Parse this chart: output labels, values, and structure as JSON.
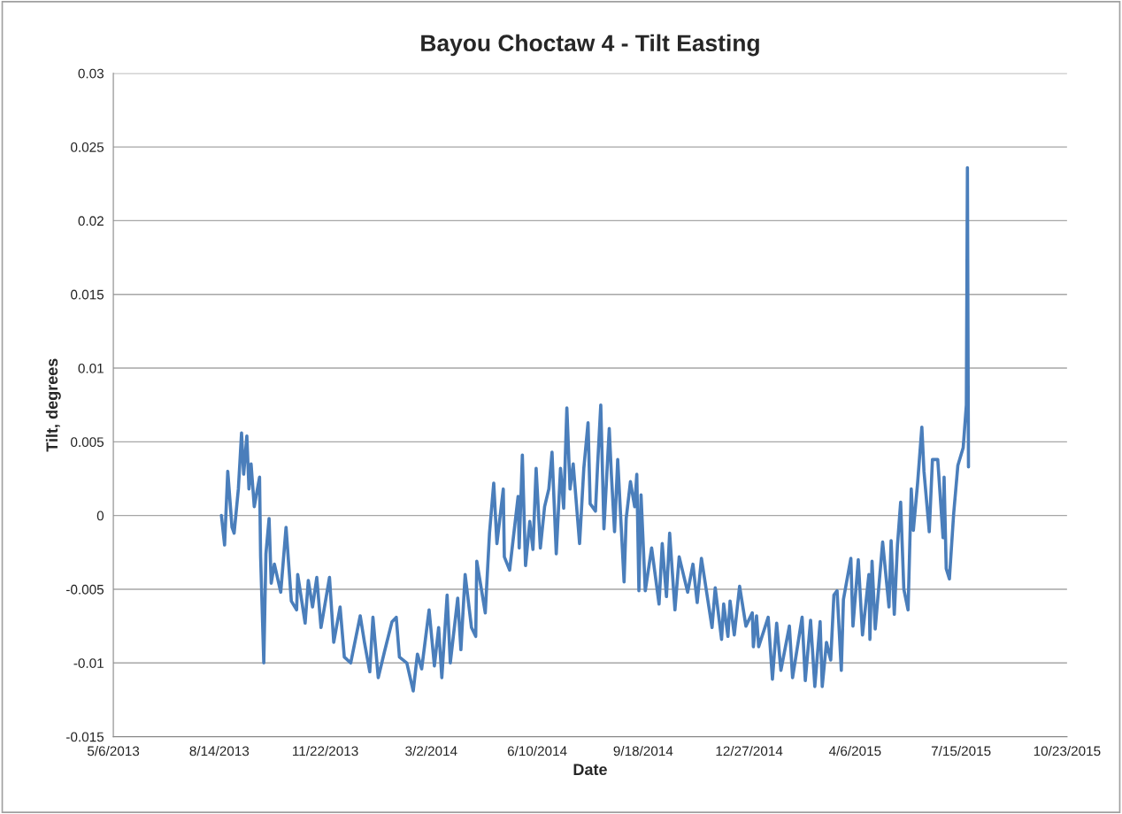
{
  "chart_data": {
    "type": "line",
    "title": "Bayou Choctaw 4 - Tilt Easting",
    "xlabel": "Date",
    "ylabel": "Tilt, degrees",
    "x": [
      "2013-08-16",
      "2013-08-19",
      "2013-08-22",
      "2013-08-26",
      "2013-08-28",
      "2013-09-01",
      "2013-09-04",
      "2013-09-06",
      "2013-09-09",
      "2013-09-11",
      "2013-09-13",
      "2013-09-16",
      "2013-09-21",
      "2013-09-22",
      "2013-09-25",
      "2013-09-27",
      "2013-09-30",
      "2013-10-02",
      "2013-10-05",
      "2013-10-11",
      "2013-10-16",
      "2013-10-21",
      "2013-10-26",
      "2013-10-27",
      "2013-11-03",
      "2013-11-06",
      "2013-11-10",
      "2013-11-14",
      "2013-11-18",
      "2013-11-26",
      "2013-11-30",
      "2013-12-06",
      "2013-12-10",
      "2013-12-16",
      "2013-12-25",
      "2013-12-29",
      "2014-01-03",
      "2014-01-06",
      "2014-01-11",
      "2014-01-17",
      "2014-01-24",
      "2014-01-28",
      "2014-01-31",
      "2014-02-07",
      "2014-02-13",
      "2014-02-17",
      "2014-02-21",
      "2014-02-28",
      "2014-03-05",
      "2014-03-09",
      "2014-03-12",
      "2014-03-17",
      "2014-03-20",
      "2014-03-27",
      "2014-03-30",
      "2014-04-03",
      "2014-04-09",
      "2014-04-13",
      "2014-04-14",
      "2014-04-22",
      "2014-04-26",
      "2014-04-30",
      "2014-05-03",
      "2014-05-09",
      "2014-05-10",
      "2014-05-15",
      "2014-05-23",
      "2014-05-24",
      "2014-05-27",
      "2014-05-30",
      "2014-06-03",
      "2014-06-06",
      "2014-06-09",
      "2014-06-13",
      "2014-06-17",
      "2014-06-21",
      "2014-06-24",
      "2014-06-28",
      "2014-07-02",
      "2014-07-05",
      "2014-07-08",
      "2014-07-11",
      "2014-07-14",
      "2014-07-20",
      "2014-07-24",
      "2014-07-28",
      "2014-07-30",
      "2014-08-04",
      "2014-08-06",
      "2014-08-09",
      "2014-08-12",
      "2014-08-17",
      "2014-08-19",
      "2014-08-22",
      "2014-08-25",
      "2014-08-31",
      "2014-09-02",
      "2014-09-06",
      "2014-09-10",
      "2014-09-12",
      "2014-09-14",
      "2014-09-16",
      "2014-09-20",
      "2014-09-26",
      "2014-10-03",
      "2014-10-06",
      "2014-10-10",
      "2014-10-13",
      "2014-10-18",
      "2014-10-22",
      "2014-10-30",
      "2014-11-04",
      "2014-11-08",
      "2014-11-12",
      "2014-11-22",
      "2014-11-25",
      "2014-12-01",
      "2014-12-03",
      "2014-12-07",
      "2014-12-09",
      "2014-12-13",
      "2014-12-18",
      "2014-12-24",
      "2014-12-30",
      "2014-12-31",
      "2015-01-03",
      "2015-01-05",
      "2015-01-14",
      "2015-01-18",
      "2015-01-22",
      "2015-01-26",
      "2015-02-03",
      "2015-02-06",
      "2015-02-15",
      "2015-02-18",
      "2015-02-23",
      "2015-02-27",
      "2015-03-04",
      "2015-03-06",
      "2015-03-10",
      "2015-03-14",
      "2015-03-17",
      "2015-03-20",
      "2015-03-24",
      "2015-03-26",
      "2015-04-02",
      "2015-04-04",
      "2015-04-09",
      "2015-04-13",
      "2015-04-19",
      "2015-04-20",
      "2015-04-22",
      "2015-04-25",
      "2015-05-02",
      "2015-05-08",
      "2015-05-10",
      "2015-05-13",
      "2015-05-16",
      "2015-05-19",
      "2015-05-22",
      "2015-05-26",
      "2015-05-29",
      "2015-05-31",
      "2015-06-04",
      "2015-06-08",
      "2015-06-10",
      "2015-06-15",
      "2015-06-18",
      "2015-06-23",
      "2015-06-28",
      "2015-06-29",
      "2015-07-01",
      "2015-07-04",
      "2015-07-08",
      "2015-07-12",
      "2015-07-17",
      "2015-07-20",
      "2015-07-21",
      "2015-07-22"
    ],
    "series": [
      {
        "color": "#4a7ebb",
        "values": [
          0.0,
          -0.002,
          0.003,
          -0.0008,
          -0.0012,
          0.0018,
          0.0056,
          0.0028,
          0.0054,
          0.0018,
          0.0035,
          0.0006,
          0.0026,
          -0.0028,
          -0.01,
          -0.0026,
          -0.0002,
          -0.0046,
          -0.0033,
          -0.0052,
          -0.0008,
          -0.0058,
          -0.0064,
          -0.004,
          -0.0073,
          -0.0044,
          -0.0062,
          -0.0042,
          -0.0076,
          -0.0042,
          -0.0086,
          -0.0062,
          -0.0096,
          -0.01,
          -0.0068,
          -0.0086,
          -0.0106,
          -0.0069,
          -0.011,
          -0.0092,
          -0.0072,
          -0.0069,
          -0.0096,
          -0.01,
          -0.0119,
          -0.0094,
          -0.0104,
          -0.0064,
          -0.0102,
          -0.0076,
          -0.011,
          -0.0054,
          -0.01,
          -0.0056,
          -0.0091,
          -0.004,
          -0.0076,
          -0.0082,
          -0.0031,
          -0.0066,
          -0.0012,
          0.0022,
          -0.0019,
          0.0018,
          -0.0028,
          -0.0037,
          0.0013,
          -0.0022,
          0.0041,
          -0.0034,
          -0.0004,
          -0.0023,
          0.0032,
          -0.0022,
          0.0006,
          0.0018,
          0.0043,
          -0.0026,
          0.0032,
          0.0005,
          0.0073,
          0.0018,
          0.0035,
          -0.0019,
          0.0032,
          0.0063,
          0.0008,
          0.0003,
          0.0034,
          0.0075,
          -0.0009,
          0.0059,
          0.0028,
          -0.0011,
          0.0038,
          -0.0045,
          -0.0002,
          0.0023,
          0.0006,
          0.0028,
          -0.0051,
          0.0014,
          -0.0051,
          -0.0022,
          -0.006,
          -0.0019,
          -0.0055,
          -0.0012,
          -0.0064,
          -0.0028,
          -0.0052,
          -0.0033,
          -0.0059,
          -0.0029,
          -0.0076,
          -0.0049,
          -0.0084,
          -0.006,
          -0.0082,
          -0.0058,
          -0.0081,
          -0.0048,
          -0.0075,
          -0.0066,
          -0.0089,
          -0.0068,
          -0.0089,
          -0.0069,
          -0.0111,
          -0.0073,
          -0.0105,
          -0.0075,
          -0.011,
          -0.0069,
          -0.0112,
          -0.0071,
          -0.0116,
          -0.0072,
          -0.0116,
          -0.0086,
          -0.0098,
          -0.0054,
          -0.0051,
          -0.0105,
          -0.0057,
          -0.0029,
          -0.0075,
          -0.003,
          -0.0081,
          -0.004,
          -0.0084,
          -0.0031,
          -0.0077,
          -0.0018,
          -0.0062,
          -0.0017,
          -0.0067,
          -0.002,
          0.0009,
          -0.005,
          -0.0064,
          0.0018,
          -0.001,
          0.0022,
          0.006,
          0.003,
          -0.0011,
          0.0038,
          0.0038,
          -0.0015,
          0.0026,
          -0.0036,
          -0.0043,
          0.0001,
          0.0034,
          0.0046,
          0.0075,
          0.0236,
          0.0033
        ]
      }
    ],
    "xlim": [
      "2013-05-06",
      "2015-10-23"
    ],
    "xticks": [
      {
        "value": "2013-05-06",
        "label": "5/6/2013"
      },
      {
        "value": "2013-08-14",
        "label": "8/14/2013"
      },
      {
        "value": "2013-11-22",
        "label": "11/22/2013"
      },
      {
        "value": "2014-03-02",
        "label": "3/2/2014"
      },
      {
        "value": "2014-06-10",
        "label": "6/10/2014"
      },
      {
        "value": "2014-09-18",
        "label": "9/18/2014"
      },
      {
        "value": "2014-12-27",
        "label": "12/27/2014"
      },
      {
        "value": "2015-04-06",
        "label": "4/6/2015"
      },
      {
        "value": "2015-07-15",
        "label": "7/15/2015"
      },
      {
        "value": "2015-10-23",
        "label": "10/23/2015"
      }
    ],
    "ylim": [
      -0.015,
      0.03
    ],
    "yticks": [
      -0.015,
      -0.01,
      -0.005,
      0,
      0.005,
      0.01,
      0.015,
      0.02,
      0.025,
      0.03
    ],
    "grid": "y",
    "legend": false,
    "marker": "none",
    "line_style": "solid"
  }
}
